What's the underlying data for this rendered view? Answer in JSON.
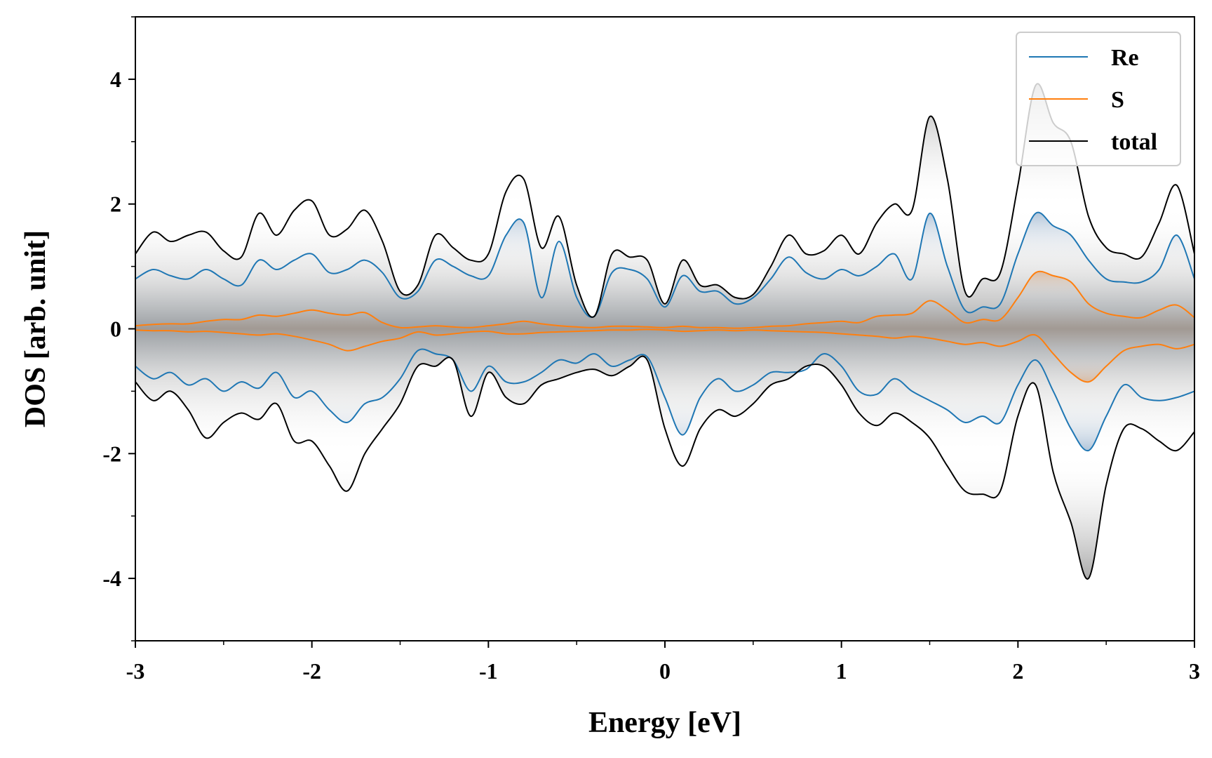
{
  "chart_data": {
    "type": "line",
    "xlabel": "Energy [eV]",
    "ylabel": "DOS [arb. unit]",
    "xlim": [
      -3,
      3
    ],
    "ylim": [
      -5,
      5
    ],
    "x_ticks": [
      -3,
      -2,
      -1,
      0,
      1,
      2,
      3
    ],
    "x_tick_labels": [
      "-3",
      "-2",
      "-1",
      "0",
      "1",
      "2",
      "3"
    ],
    "y_ticks": [
      -4,
      -2,
      0,
      2,
      4
    ],
    "y_tick_labels": [
      "-4",
      "-2",
      "0",
      "2",
      "4"
    ],
    "grid": false,
    "legend_position": "top-right",
    "x": [
      -3.0,
      -2.9,
      -2.8,
      -2.7,
      -2.6,
      -2.5,
      -2.4,
      -2.3,
      -2.2,
      -2.1,
      -2.0,
      -1.9,
      -1.8,
      -1.7,
      -1.6,
      -1.5,
      -1.4,
      -1.3,
      -1.2,
      -1.1,
      -1.0,
      -0.9,
      -0.8,
      -0.7,
      -0.6,
      -0.5,
      -0.4,
      -0.3,
      -0.2,
      -0.1,
      0.0,
      0.1,
      0.2,
      0.3,
      0.4,
      0.5,
      0.6,
      0.7,
      0.8,
      0.9,
      1.0,
      1.1,
      1.2,
      1.3,
      1.4,
      1.5,
      1.6,
      1.7,
      1.8,
      1.9,
      2.0,
      2.1,
      2.2,
      2.3,
      2.4,
      2.5,
      2.6,
      2.7,
      2.8,
      2.9,
      3.0
    ],
    "series": [
      {
        "name": "Re",
        "color": "#1f77b4",
        "spin_up": [
          0.8,
          0.95,
          0.85,
          0.8,
          0.95,
          0.8,
          0.7,
          1.1,
          0.95,
          1.1,
          1.2,
          0.9,
          0.95,
          1.1,
          0.9,
          0.5,
          0.6,
          1.1,
          1.0,
          0.85,
          0.85,
          1.5,
          1.7,
          0.5,
          1.4,
          0.5,
          0.2,
          0.9,
          0.95,
          0.8,
          0.35,
          0.85,
          0.6,
          0.6,
          0.4,
          0.5,
          0.8,
          1.15,
          0.9,
          0.8,
          0.95,
          0.85,
          1.0,
          1.2,
          0.8,
          1.85,
          1.0,
          0.3,
          0.35,
          0.4,
          1.2,
          1.85,
          1.65,
          1.5,
          1.1,
          0.8,
          0.75,
          0.75,
          0.95,
          1.5,
          0.8
        ],
        "spin_down": [
          -0.6,
          -0.8,
          -0.7,
          -0.9,
          -0.8,
          -1.0,
          -0.85,
          -0.95,
          -0.7,
          -1.1,
          -1.0,
          -1.3,
          -1.5,
          -1.2,
          -1.1,
          -0.8,
          -0.35,
          -0.4,
          -0.5,
          -1.0,
          -0.6,
          -0.85,
          -0.85,
          -0.7,
          -0.5,
          -0.55,
          -0.4,
          -0.6,
          -0.5,
          -0.45,
          -1.1,
          -1.7,
          -1.1,
          -0.8,
          -1.0,
          -0.9,
          -0.7,
          -0.7,
          -0.65,
          -0.4,
          -0.6,
          -1.0,
          -1.05,
          -0.8,
          -1.0,
          -1.15,
          -1.3,
          -1.5,
          -1.4,
          -1.5,
          -0.9,
          -0.5,
          -1.0,
          -1.6,
          -1.95,
          -1.4,
          -0.9,
          -1.1,
          -1.15,
          -1.1,
          -1.0
        ]
      },
      {
        "name": "S",
        "color": "#ff7f0e",
        "spin_up": [
          0.05,
          0.07,
          0.08,
          0.08,
          0.12,
          0.15,
          0.15,
          0.22,
          0.2,
          0.25,
          0.3,
          0.25,
          0.22,
          0.26,
          0.1,
          0.02,
          0.03,
          0.05,
          0.03,
          0.02,
          0.05,
          0.08,
          0.12,
          0.08,
          0.05,
          0.03,
          0.02,
          0.04,
          0.04,
          0.03,
          0.02,
          0.04,
          0.02,
          0.02,
          0.01,
          0.02,
          0.04,
          0.05,
          0.08,
          0.1,
          0.12,
          0.1,
          0.2,
          0.22,
          0.25,
          0.45,
          0.3,
          0.1,
          0.15,
          0.15,
          0.5,
          0.9,
          0.85,
          0.75,
          0.4,
          0.25,
          0.2,
          0.18,
          0.3,
          0.38,
          0.18
        ],
        "spin_down": [
          -0.02,
          -0.03,
          -0.03,
          -0.05,
          -0.04,
          -0.06,
          -0.08,
          -0.1,
          -0.08,
          -0.12,
          -0.18,
          -0.25,
          -0.35,
          -0.28,
          -0.2,
          -0.15,
          -0.05,
          -0.1,
          -0.08,
          -0.05,
          -0.04,
          -0.08,
          -0.08,
          -0.06,
          -0.05,
          -0.04,
          -0.03,
          -0.02,
          -0.02,
          -0.01,
          -0.02,
          -0.04,
          -0.03,
          -0.02,
          -0.03,
          -0.02,
          -0.03,
          -0.04,
          -0.05,
          -0.06,
          -0.08,
          -0.1,
          -0.12,
          -0.15,
          -0.12,
          -0.15,
          -0.2,
          -0.25,
          -0.22,
          -0.28,
          -0.2,
          -0.1,
          -0.4,
          -0.7,
          -0.85,
          -0.6,
          -0.35,
          -0.28,
          -0.25,
          -0.32,
          -0.25
        ]
      },
      {
        "name": "total",
        "color": "#000000",
        "spin_up": [
          1.2,
          1.55,
          1.4,
          1.5,
          1.55,
          1.25,
          1.15,
          1.85,
          1.5,
          1.9,
          2.05,
          1.5,
          1.6,
          1.9,
          1.4,
          0.6,
          0.7,
          1.5,
          1.3,
          1.1,
          1.2,
          2.2,
          2.4,
          1.3,
          1.8,
          0.7,
          0.2,
          1.2,
          1.15,
          1.1,
          0.4,
          1.1,
          0.7,
          0.7,
          0.5,
          0.55,
          1.0,
          1.5,
          1.2,
          1.25,
          1.5,
          1.2,
          1.7,
          2.0,
          1.9,
          3.4,
          2.4,
          0.6,
          0.8,
          0.9,
          2.3,
          3.9,
          3.3,
          3.0,
          1.8,
          1.3,
          1.2,
          1.15,
          1.7,
          2.3,
          1.2
        ],
        "spin_down": [
          -0.85,
          -1.15,
          -1.0,
          -1.3,
          -1.75,
          -1.5,
          -1.35,
          -1.45,
          -1.2,
          -1.8,
          -1.8,
          -2.2,
          -2.6,
          -2.0,
          -1.6,
          -1.2,
          -0.6,
          -0.6,
          -0.5,
          -1.4,
          -0.7,
          -1.1,
          -1.2,
          -0.9,
          -0.8,
          -0.7,
          -0.65,
          -0.75,
          -0.6,
          -0.5,
          -1.6,
          -2.2,
          -1.6,
          -1.3,
          -1.4,
          -1.2,
          -0.9,
          -0.8,
          -0.6,
          -0.6,
          -0.9,
          -1.35,
          -1.55,
          -1.35,
          -1.5,
          -1.75,
          -2.2,
          -2.6,
          -2.65,
          -2.6,
          -1.4,
          -0.9,
          -2.3,
          -3.1,
          -4.0,
          -2.5,
          -1.6,
          -1.6,
          -1.8,
          -1.95,
          -1.65
        ]
      }
    ]
  }
}
